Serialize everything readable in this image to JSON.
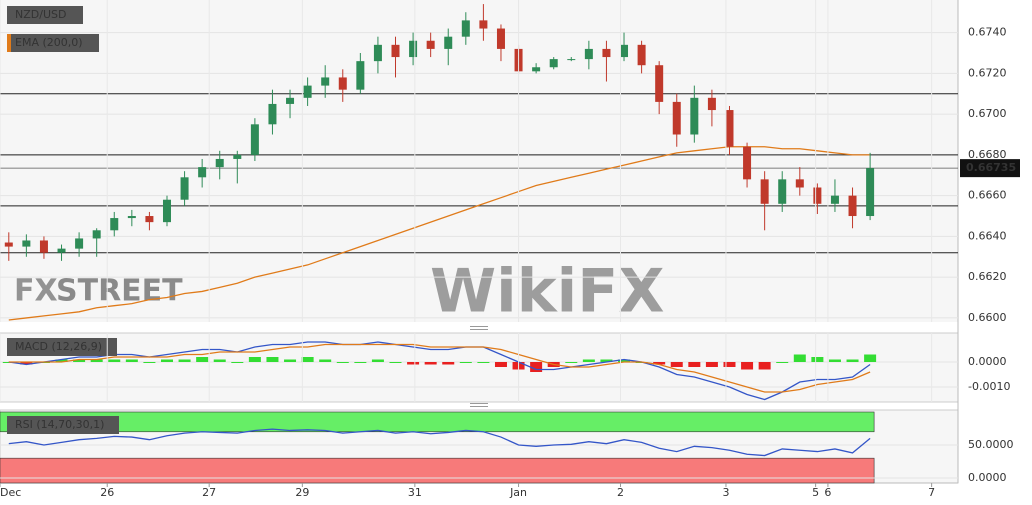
{
  "chart_data": [
    {
      "type": "candlestick",
      "title": "NZD/USD",
      "open": [
        0.6637,
        0.6635,
        0.6638,
        0.6632,
        0.6634,
        0.6639,
        0.6643,
        0.6649,
        0.665,
        0.6647,
        0.6658,
        0.6669,
        0.6674,
        0.6678,
        0.668,
        0.6695,
        0.6705,
        0.6708,
        0.6714,
        0.6718,
        0.6712,
        0.6726,
        0.6734,
        0.6728,
        0.6736,
        0.6732,
        0.6738,
        0.6746,
        0.6742,
        0.6732,
        0.6721,
        0.6723,
        0.6727,
        0.6727,
        0.6732,
        0.6728,
        0.6734,
        0.6724,
        0.6706,
        0.669,
        0.6708,
        0.6702,
        0.6684,
        0.6668,
        0.6656,
        0.6668,
        0.6664,
        0.6656,
        0.666,
        0.665
      ],
      "high": [
        0.6642,
        0.6641,
        0.664,
        0.6636,
        0.6642,
        0.6644,
        0.6652,
        0.6653,
        0.6652,
        0.666,
        0.6672,
        0.6678,
        0.6682,
        0.6682,
        0.6698,
        0.6712,
        0.6712,
        0.6718,
        0.6724,
        0.6722,
        0.673,
        0.6738,
        0.6738,
        0.674,
        0.674,
        0.6742,
        0.675,
        0.6754,
        0.6744,
        0.6734,
        0.6725,
        0.6728,
        0.6728,
        0.6736,
        0.6736,
        0.674,
        0.6736,
        0.6726,
        0.671,
        0.6714,
        0.6712,
        0.6704,
        0.6686,
        0.6672,
        0.6672,
        0.6674,
        0.6666,
        0.6668,
        0.6664,
        0.6681
      ],
      "low": [
        0.6628,
        0.663,
        0.6629,
        0.6628,
        0.663,
        0.663,
        0.664,
        0.6645,
        0.6643,
        0.6645,
        0.6655,
        0.6664,
        0.6668,
        0.6666,
        0.6677,
        0.669,
        0.6698,
        0.6704,
        0.6708,
        0.6706,
        0.671,
        0.672,
        0.6718,
        0.6724,
        0.6728,
        0.6724,
        0.6734,
        0.6736,
        0.6726,
        0.672,
        0.672,
        0.6722,
        0.6726,
        0.6722,
        0.6716,
        0.6726,
        0.672,
        0.67,
        0.6684,
        0.6686,
        0.6694,
        0.668,
        0.6664,
        0.6643,
        0.6652,
        0.666,
        0.6651,
        0.6652,
        0.6644,
        0.6648
      ],
      "close": [
        0.6635,
        0.6638,
        0.6632,
        0.6634,
        0.6639,
        0.6643,
        0.6649,
        0.665,
        0.6647,
        0.6658,
        0.6669,
        0.6674,
        0.6678,
        0.668,
        0.6695,
        0.6705,
        0.6708,
        0.6714,
        0.6718,
        0.6712,
        0.6726,
        0.6734,
        0.6728,
        0.6736,
        0.6732,
        0.6738,
        0.6746,
        0.6742,
        0.6732,
        0.6721,
        0.6723,
        0.6727,
        0.6727,
        0.6732,
        0.6728,
        0.6734,
        0.6724,
        0.6706,
        0.669,
        0.6708,
        0.6702,
        0.6684,
        0.6668,
        0.6656,
        0.6668,
        0.6664,
        0.6656,
        0.666,
        0.665,
        0.66735
      ],
      "up_color": "#2e8b57",
      "down_color": "#c0392b",
      "series": [
        {
          "name": "EMA (200,0)",
          "color": "#e07b1a",
          "values": [
            0.6599,
            0.66,
            0.6601,
            0.6602,
            0.6603,
            0.6605,
            0.6606,
            0.6607,
            0.6609,
            0.661,
            0.6612,
            0.6613,
            0.6615,
            0.6617,
            0.662,
            0.6622,
            0.6624,
            0.6626,
            0.6629,
            0.6632,
            0.6635,
            0.6638,
            0.6641,
            0.6644,
            0.6647,
            0.665,
            0.6653,
            0.6656,
            0.6659,
            0.6662,
            0.6665,
            0.6667,
            0.6669,
            0.6671,
            0.6673,
            0.6675,
            0.6677,
            0.6679,
            0.6681,
            0.6682,
            0.6683,
            0.6684,
            0.6684,
            0.6684,
            0.6683,
            0.6683,
            0.6682,
            0.6681,
            0.668,
            0.668
          ]
        }
      ],
      "levels": [
        0.671,
        0.668,
        0.6655,
        0.6632
      ],
      "current_price": 0.66735,
      "xlim": [
        0,
        54.5
      ],
      "ylim": [
        0.6598,
        0.6756
      ],
      "yticks": [
        {
          "value": 0.66,
          "label": "0.6600"
        },
        {
          "value": 0.662,
          "label": "0.6620"
        },
        {
          "value": 0.664,
          "label": "0.6640"
        },
        {
          "value": 0.666,
          "label": "0.6660"
        },
        {
          "value": 0.668,
          "label": "0.6680"
        },
        {
          "value": 0.67,
          "label": "0.6700"
        },
        {
          "value": 0.672,
          "label": "0.6720"
        },
        {
          "value": 0.674,
          "label": "0.6740"
        }
      ],
      "watermarks": [
        "FX",
        "STREET",
        "WikiFX"
      ]
    },
    {
      "type": "macd",
      "title": "MACD (12,26,9)",
      "series": [
        {
          "name": "MACD",
          "color": "#3456c8",
          "values": [
            0.0,
            -0.0001,
            0.0,
            0.0001,
            0.0002,
            0.0002,
            0.0003,
            0.0003,
            0.0002,
            0.0003,
            0.0004,
            0.0005,
            0.0005,
            0.0004,
            0.0006,
            0.0007,
            0.0007,
            0.0008,
            0.0008,
            0.0007,
            0.0007,
            0.0008,
            0.0007,
            0.0006,
            0.0005,
            0.0005,
            0.0006,
            0.0006,
            0.0003,
            0.0,
            -0.0003,
            -0.0003,
            -0.0002,
            -0.0001,
            0.0,
            0.0001,
            0.0,
            -0.0002,
            -0.0005,
            -0.0006,
            -0.0008,
            -0.001,
            -0.0013,
            -0.0015,
            -0.0012,
            -0.0008,
            -0.0007,
            -0.0007,
            -0.0006,
            -0.0001
          ]
        },
        {
          "name": "Signal",
          "color": "#e07b1a",
          "values": [
            0.0,
            0.0,
            0.0,
            0.0,
            0.0001,
            0.0001,
            0.0002,
            0.0002,
            0.0002,
            0.0002,
            0.0003,
            0.0003,
            0.0004,
            0.0004,
            0.0004,
            0.0005,
            0.0006,
            0.0006,
            0.0007,
            0.0007,
            0.0007,
            0.0007,
            0.0007,
            0.0007,
            0.0006,
            0.0006,
            0.0006,
            0.0006,
            0.0005,
            0.0003,
            0.0001,
            -0.0001,
            -0.0002,
            -0.0002,
            -0.0001,
            0.0,
            0.0,
            -0.0001,
            -0.0003,
            -0.0004,
            -0.0006,
            -0.0008,
            -0.001,
            -0.0012,
            -0.0012,
            -0.0011,
            -0.0009,
            -0.0008,
            -0.0007,
            -0.0004
          ]
        },
        {
          "name": "Histogram",
          "up_color": "#33dd33",
          "down_color": "#e82020",
          "values": [
            0,
            -0.0001,
            0,
            0.0001,
            0.0001,
            0.0001,
            0.0001,
            0.0001,
            0,
            0.0001,
            0.0001,
            0.0002,
            0.0001,
            0,
            0.0002,
            0.0002,
            0.0001,
            0.0002,
            0.0001,
            0,
            0,
            0.0001,
            0,
            -0.0001,
            -0.0001,
            -0.0001,
            0,
            0,
            -0.0002,
            -0.0003,
            -0.0004,
            -0.0002,
            0,
            0.0001,
            0.0001,
            0.0001,
            0,
            -0.0001,
            -0.0002,
            -0.0002,
            -0.0002,
            -0.0002,
            -0.0003,
            -0.0003,
            0,
            0.0003,
            0.0002,
            0.0001,
            0.0001,
            0.0003
          ]
        }
      ],
      "xlim": [
        0,
        54.5
      ],
      "ylim": [
        -0.0016,
        0.00116
      ],
      "yticks": [
        {
          "value": -0.001,
          "label": "-0.0010"
        },
        {
          "value": 0,
          "label": "0.0000"
        }
      ]
    },
    {
      "type": "rsi",
      "title": "RSI (14,70,30,1)",
      "series": [
        {
          "name": "RSI",
          "color": "#3456c8",
          "values": [
            52,
            55,
            50,
            54,
            58,
            60,
            63,
            62,
            58,
            64,
            68,
            70,
            69,
            68,
            72,
            74,
            72,
            73,
            72,
            68,
            70,
            72,
            68,
            70,
            67,
            69,
            72,
            70,
            62,
            50,
            48,
            50,
            51,
            55,
            52,
            58,
            54,
            45,
            40,
            48,
            46,
            42,
            36,
            34,
            44,
            42,
            40,
            44,
            38,
            60
          ]
        }
      ],
      "overbought": 70,
      "oversold": 30,
      "overbought_color": "#66ee66",
      "oversold_color": "#f77a7a",
      "xlim": [
        0,
        54.5
      ],
      "ylim": [
        -7.6,
        103
      ],
      "yticks": [
        {
          "value": 0,
          "label": "0.0000"
        },
        {
          "value": 50,
          "label": "50.0000"
        }
      ],
      "xticks": [
        {
          "value": 0,
          "label": "Dec"
        },
        {
          "value": 6.1,
          "label": "26"
        },
        {
          "value": 11.9,
          "label": "27"
        },
        {
          "value": 17.2,
          "label": "29"
        },
        {
          "value": 23.6,
          "label": "31"
        },
        {
          "value": 29.5,
          "label": "Jan"
        },
        {
          "value": 35.3,
          "label": "2"
        },
        {
          "value": 41.3,
          "label": "3"
        },
        {
          "value": 46.4,
          "label": "5"
        },
        {
          "value": 47.1,
          "label": "6"
        },
        {
          "value": 53,
          "label": "7"
        }
      ]
    }
  ]
}
